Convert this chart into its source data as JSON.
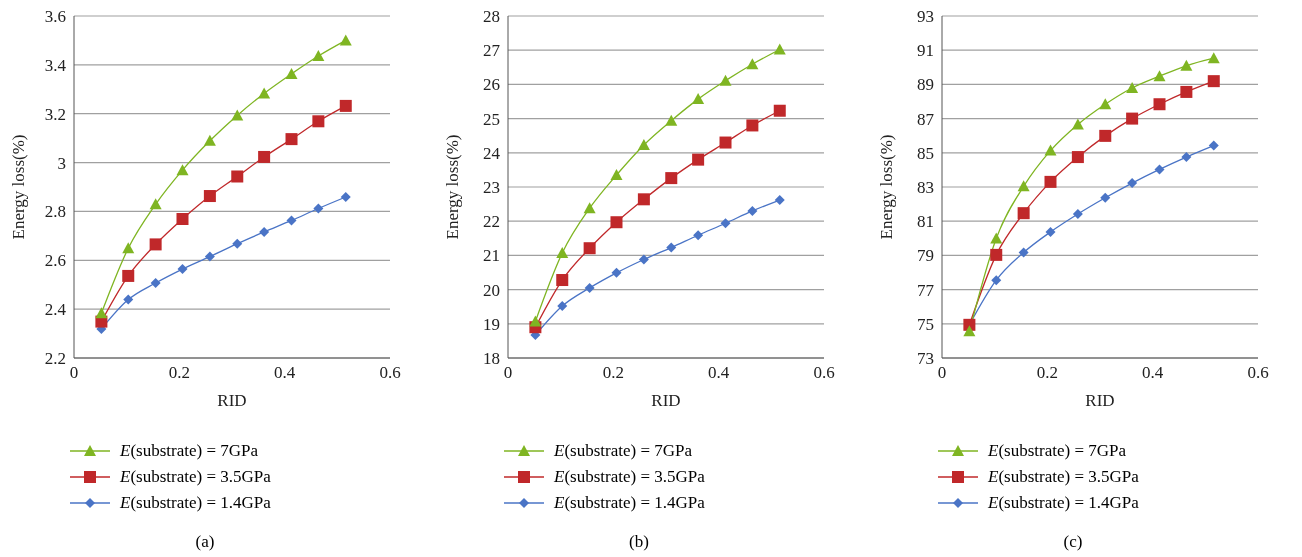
{
  "chart_data": [
    {
      "type": "line",
      "xlabel": "RID",
      "ylabel": "Energy loss(%)",
      "x": [
        0.052,
        0.103,
        0.155,
        0.206,
        0.258,
        0.31,
        0.361,
        0.413,
        0.464,
        0.516
      ],
      "xlim": [
        0,
        0.6
      ],
      "xticks": [
        0,
        0.2,
        0.4,
        0.6
      ],
      "ylim": [
        2.2,
        3.6
      ],
      "yticks": [
        2.2,
        2.4,
        2.6,
        2.8,
        3,
        3.2,
        3.4,
        3.6
      ],
      "grid": "y",
      "legend": "bottom",
      "annotations": [
        "(a)"
      ],
      "series": [
        {
          "name": "E(substrate) = 7GPa",
          "color": "#7fb522",
          "marker": "triangle",
          "values": [
            2.383,
            2.649,
            2.829,
            2.969,
            3.089,
            3.193,
            3.283,
            3.363,
            3.436,
            3.5
          ]
        },
        {
          "name": "E(substrate) = 3.5GPa",
          "color": "#c0282a",
          "marker": "square",
          "values": [
            2.349,
            2.536,
            2.665,
            2.769,
            2.863,
            2.943,
            3.023,
            3.096,
            3.169,
            3.232
          ]
        },
        {
          "name": "E(substrate) = 1.4GPa",
          "color": "#4a74c6",
          "marker": "diamond",
          "values": [
            2.319,
            2.439,
            2.507,
            2.564,
            2.615,
            2.668,
            2.716,
            2.763,
            2.812,
            2.859
          ]
        }
      ]
    },
    {
      "type": "line",
      "xlabel": "RID",
      "ylabel": "Energy loss(%)",
      "x": [
        0.052,
        0.103,
        0.155,
        0.206,
        0.258,
        0.31,
        0.361,
        0.413,
        0.464,
        0.516
      ],
      "xlim": [
        0,
        0.6
      ],
      "xticks": [
        0,
        0.2,
        0.4,
        0.6
      ],
      "ylim": [
        18,
        28
      ],
      "yticks": [
        18,
        19,
        20,
        21,
        22,
        23,
        24,
        25,
        26,
        27,
        28
      ],
      "grid": "y",
      "legend": "bottom",
      "annotations": [
        "(b)"
      ],
      "series": [
        {
          "name": "E(substrate) = 7GPa",
          "color": "#7fb522",
          "marker": "triangle",
          "values": [
            19.07,
            21.07,
            22.38,
            23.35,
            24.23,
            24.94,
            25.57,
            26.11,
            26.59,
            27.02
          ]
        },
        {
          "name": "E(substrate) = 3.5GPa",
          "color": "#c0282a",
          "marker": "square",
          "values": [
            18.9,
            20.28,
            21.21,
            21.97,
            22.64,
            23.26,
            23.8,
            24.3,
            24.8,
            25.23
          ]
        },
        {
          "name": "E(substrate) = 1.4GPa",
          "color": "#4a74c6",
          "marker": "diamond",
          "values": [
            18.67,
            19.52,
            20.05,
            20.49,
            20.88,
            21.23,
            21.59,
            21.94,
            22.3,
            22.62
          ]
        }
      ]
    },
    {
      "type": "line",
      "xlabel": "RID",
      "ylabel": "Energy loss(%)",
      "x": [
        0.052,
        0.103,
        0.155,
        0.206,
        0.258,
        0.31,
        0.361,
        0.413,
        0.464,
        0.516
      ],
      "xlim": [
        0,
        0.6
      ],
      "xticks": [
        0,
        0.2,
        0.4,
        0.6
      ],
      "ylim": [
        73,
        93
      ],
      "yticks": [
        73,
        75,
        77,
        79,
        81,
        83,
        85,
        87,
        89,
        91,
        93
      ],
      "grid": "y",
      "legend": "bottom",
      "annotations": [
        "(c)"
      ],
      "series": [
        {
          "name": "E(substrate) = 7GPa",
          "color": "#7fb522",
          "marker": "triangle",
          "values": [
            74.56,
            79.99,
            83.04,
            85.13,
            86.66,
            87.84,
            88.79,
            89.48,
            90.09,
            90.53
          ]
        },
        {
          "name": "E(substrate) = 3.5GPa",
          "color": "#c0282a",
          "marker": "square",
          "values": [
            74.94,
            79.03,
            81.47,
            83.3,
            84.75,
            85.99,
            87.0,
            87.84,
            88.56,
            89.19
          ]
        },
        {
          "name": "E(substrate) = 1.4GPa",
          "color": "#4a74c6",
          "marker": "diamond",
          "values": [
            74.94,
            77.55,
            79.17,
            80.37,
            81.42,
            82.37,
            83.23,
            84.03,
            84.75,
            85.42
          ]
        }
      ]
    }
  ]
}
